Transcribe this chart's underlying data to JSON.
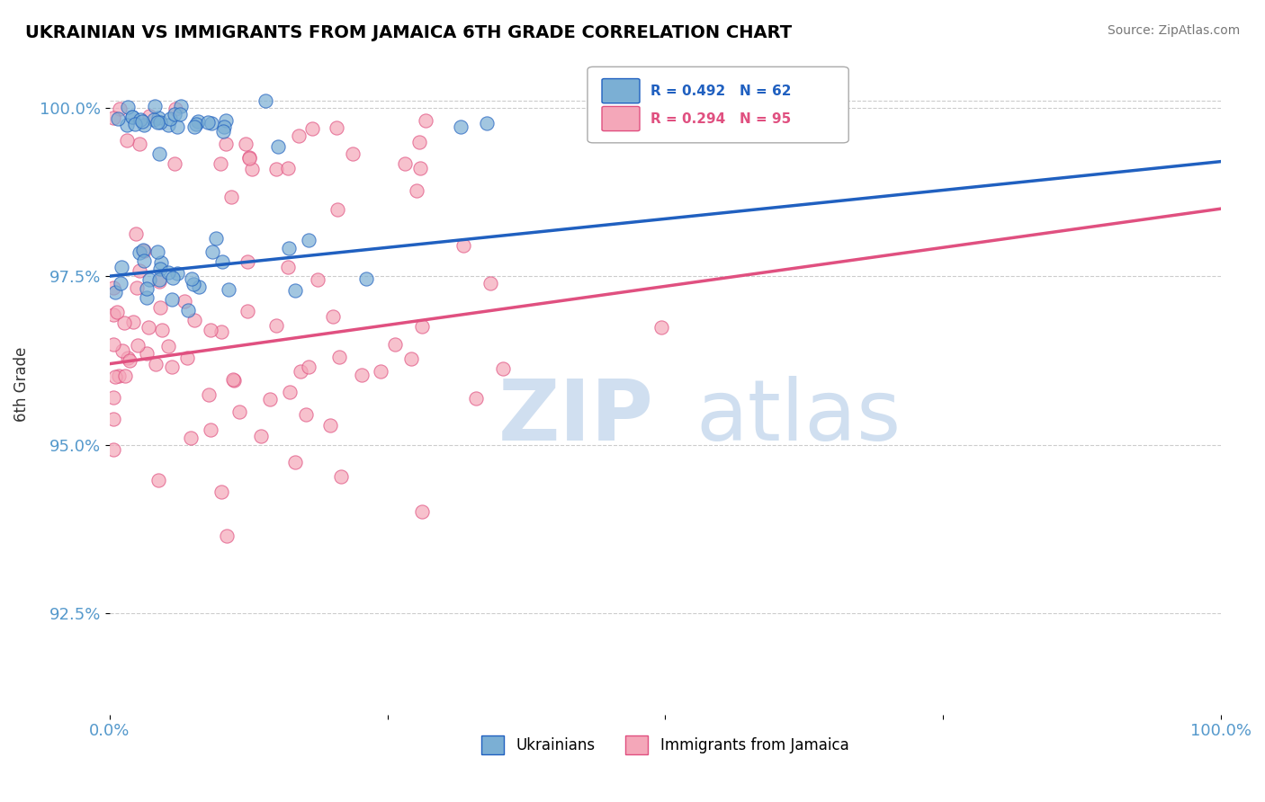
{
  "title": "UKRAINIAN VS IMMIGRANTS FROM JAMAICA 6TH GRADE CORRELATION CHART",
  "source": "Source: ZipAtlas.com",
  "xlabel": "",
  "ylabel": "6th Grade",
  "xlim": [
    0.0,
    100.0
  ],
  "ylim": [
    91.0,
    100.8
  ],
  "yticks": [
    92.5,
    95.0,
    97.5,
    100.0
  ],
  "ytick_labels": [
    "92.5%",
    "95.0%",
    "97.5%",
    "100.0%"
  ],
  "xticks": [
    0.0,
    25.0,
    50.0,
    75.0,
    100.0
  ],
  "xtick_labels": [
    "0.0%",
    "",
    "",
    "",
    "100.0%"
  ],
  "blue_R": 0.492,
  "blue_N": 62,
  "pink_R": 0.294,
  "pink_N": 95,
  "blue_color": "#7bafd4",
  "pink_color": "#f4a7b9",
  "blue_line_color": "#2060c0",
  "pink_line_color": "#e05080",
  "grid_color": "#cccccc",
  "tick_color": "#5599cc",
  "watermark_color": "#d0dff0"
}
